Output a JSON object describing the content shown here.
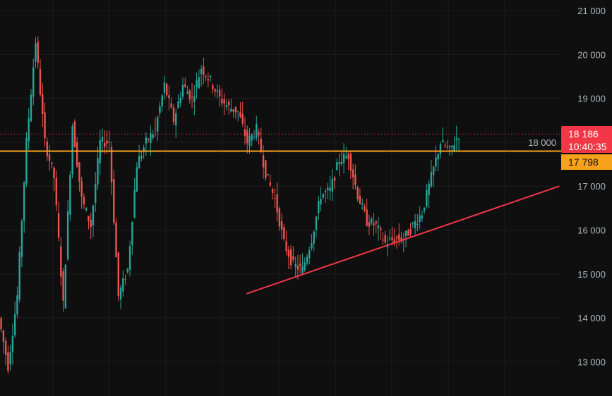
{
  "chart_data": {
    "type": "candlestick",
    "ylim": [
      12400,
      21250
    ],
    "y_ticks": [
      "21 000",
      "20 000",
      "19 000",
      "18 000",
      "17 000",
      "16 000",
      "15 000",
      "14 000",
      "13 000"
    ],
    "y_tick_values": [
      21000,
      20000,
      19000,
      18000,
      17000,
      16000,
      15000,
      14000,
      13000
    ],
    "grid": true,
    "closes": [
      14000,
      12900,
      14500,
      18000,
      20300,
      18000,
      17200,
      14300,
      18400,
      16700,
      16100,
      18000,
      18000,
      14500,
      15100,
      17500,
      18000,
      18300,
      19300,
      18500,
      19300,
      19000,
      19700,
      19400,
      19000,
      18800,
      18700,
      18000,
      18300,
      17300,
      16700,
      15700,
      15200,
      15100,
      15800,
      16800,
      16900,
      17600,
      17700,
      16800,
      16200,
      16100,
      15700,
      15800,
      15800,
      16100,
      16400,
      17200,
      18000,
      17800,
      18186
    ],
    "total_bars": 61,
    "last_price": {
      "label": "18 186",
      "countdown": "10:40:35",
      "value": 18186,
      "color": "#f23645"
    },
    "horizontal_level": {
      "label": "17 798",
      "value": 17798,
      "color": "#f7a21b"
    },
    "trend_line": {
      "from": {
        "bar": 26.8,
        "price": 14550
      },
      "to": {
        "bar": 60.8,
        "price": 17000
      },
      "color": "#f23645"
    },
    "colors": {
      "up": "#26a69a",
      "down": "#ef5350",
      "background": "#0f0f0f",
      "grid": "#1e1e1e"
    }
  }
}
